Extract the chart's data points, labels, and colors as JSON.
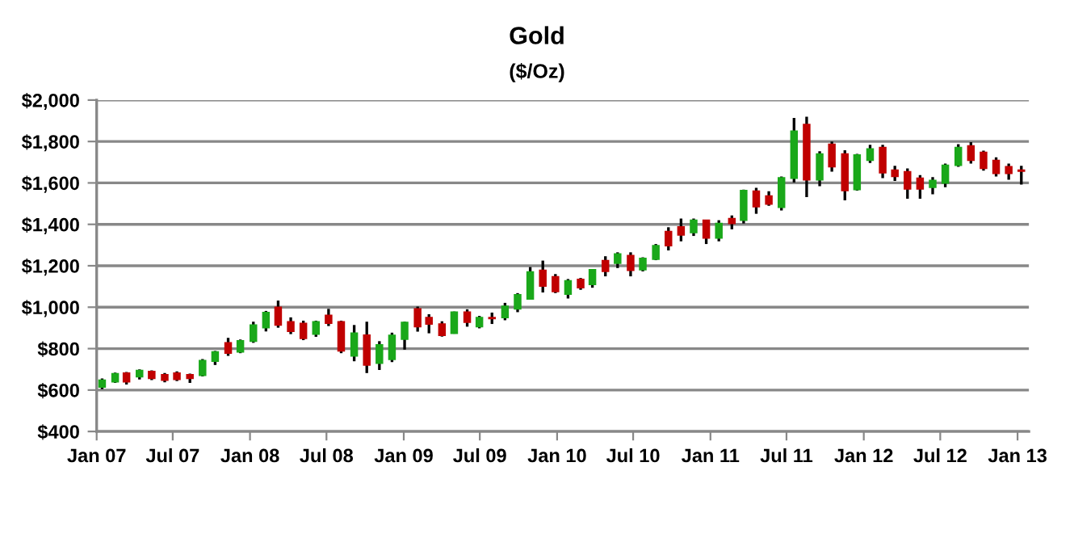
{
  "chart_data": {
    "type": "candlestick",
    "title": "Gold",
    "subtitle": "($/Oz)",
    "x": [
      "2007-01-14",
      "2007-02-14",
      "2007-03-13",
      "2007-04-13",
      "2007-05-12",
      "2007-06-12",
      "2007-07-11",
      "2007-08-11",
      "2007-09-10",
      "2007-10-10",
      "2007-11-10",
      "2007-12-09",
      "2008-01-09",
      "2008-02-08",
      "2008-03-08",
      "2008-04-07",
      "2008-05-07",
      "2008-06-06",
      "2008-07-06",
      "2008-08-05",
      "2008-09-05",
      "2008-10-05",
      "2008-11-04",
      "2008-12-04",
      "2009-01-03",
      "2009-02-03",
      "2009-03-02",
      "2009-04-02",
      "2009-05-01",
      "2009-06-01",
      "2009-06-30",
      "2009-07-30",
      "2009-08-30",
      "2009-09-29",
      "2009-10-29",
      "2009-11-28",
      "2009-12-28",
      "2010-01-27",
      "2010-02-26",
      "2010-03-26",
      "2010-04-26",
      "2010-05-25",
      "2010-06-25",
      "2010-07-24",
      "2010-08-24",
      "2010-09-23",
      "2010-10-23",
      "2010-11-22",
      "2010-12-22",
      "2011-01-21",
      "2011-02-21",
      "2011-03-21",
      "2011-04-20",
      "2011-05-20",
      "2011-06-19",
      "2011-07-19",
      "2011-08-18",
      "2011-09-18",
      "2011-10-17",
      "2011-11-17",
      "2011-12-16",
      "2012-01-16",
      "2012-02-15",
      "2012-03-15",
      "2012-04-14",
      "2012-05-14",
      "2012-06-13",
      "2012-07-13",
      "2012-08-13",
      "2012-09-12",
      "2012-10-12",
      "2012-11-11",
      "2012-12-11",
      "2013-01-10"
    ],
    "ohlc": [
      [
        614,
        656,
        604,
        648
      ],
      [
        640,
        684,
        635,
        679
      ],
      [
        682,
        687,
        627,
        640
      ],
      [
        664,
        700,
        651,
        695
      ],
      [
        690,
        695,
        648,
        656
      ],
      [
        674,
        682,
        637,
        648
      ],
      [
        682,
        690,
        643,
        651
      ],
      [
        674,
        679,
        635,
        656
      ],
      [
        671,
        750,
        666,
        742
      ],
      [
        739,
        789,
        721,
        784
      ],
      [
        828,
        852,
        765,
        778
      ],
      [
        784,
        844,
        778,
        838
      ],
      [
        836,
        930,
        828,
        914
      ],
      [
        901,
        982,
        883,
        974
      ],
      [
        1000,
        1032,
        901,
        914
      ],
      [
        930,
        951,
        870,
        883
      ],
      [
        922,
        935,
        841,
        849
      ],
      [
        870,
        935,
        857,
        930
      ],
      [
        961,
        992,
        909,
        922
      ],
      [
        930,
        935,
        778,
        789
      ],
      [
        765,
        914,
        739,
        875
      ],
      [
        865,
        930,
        682,
        721
      ],
      [
        729,
        836,
        697,
        818
      ],
      [
        748,
        877,
        735,
        864
      ],
      [
        845,
        930,
        795,
        927
      ],
      [
        992,
        1003,
        882,
        906
      ],
      [
        950,
        966,
        874,
        919
      ],
      [
        919,
        932,
        858,
        864
      ],
      [
        874,
        979,
        872,
        976
      ],
      [
        976,
        990,
        906,
        927
      ],
      [
        906,
        958,
        898,
        950
      ],
      [
        950,
        974,
        919,
        945
      ],
      [
        950,
        1021,
        937,
        1005
      ],
      [
        992,
        1068,
        976,
        1060
      ],
      [
        1039,
        1194,
        1039,
        1170
      ],
      [
        1178,
        1225,
        1071,
        1102
      ],
      [
        1147,
        1160,
        1068,
        1076
      ],
      [
        1063,
        1136,
        1042,
        1128
      ],
      [
        1134,
        1141,
        1084,
        1094
      ],
      [
        1110,
        1181,
        1094,
        1181
      ],
      [
        1225,
        1246,
        1149,
        1173
      ],
      [
        1212,
        1265,
        1189,
        1257
      ],
      [
        1249,
        1265,
        1149,
        1178
      ],
      [
        1181,
        1241,
        1173,
        1236
      ],
      [
        1232,
        1305,
        1227,
        1297
      ],
      [
        1365,
        1386,
        1274,
        1297
      ],
      [
        1388,
        1428,
        1318,
        1349
      ],
      [
        1360,
        1428,
        1344,
        1420
      ],
      [
        1420,
        1420,
        1305,
        1334
      ],
      [
        1334,
        1420,
        1318,
        1404
      ],
      [
        1428,
        1443,
        1376,
        1404
      ],
      [
        1420,
        1568,
        1404,
        1563
      ],
      [
        1560,
        1576,
        1451,
        1485
      ],
      [
        1537,
        1560,
        1490,
        1498
      ],
      [
        1482,
        1631,
        1467,
        1625
      ],
      [
        1623,
        1914,
        1602,
        1850
      ],
      [
        1882,
        1920,
        1532,
        1615
      ],
      [
        1615,
        1753,
        1584,
        1740
      ],
      [
        1787,
        1800,
        1654,
        1678
      ],
      [
        1740,
        1758,
        1516,
        1563
      ],
      [
        1568,
        1740,
        1563,
        1735
      ],
      [
        1709,
        1784,
        1696,
        1764
      ],
      [
        1771,
        1784,
        1623,
        1649
      ],
      [
        1662,
        1683,
        1610,
        1631
      ],
      [
        1654,
        1670,
        1524,
        1571
      ],
      [
        1623,
        1638,
        1524,
        1571
      ],
      [
        1579,
        1628,
        1545,
        1612
      ],
      [
        1599,
        1693,
        1579,
        1685
      ],
      [
        1685,
        1787,
        1678,
        1771
      ],
      [
        1779,
        1797,
        1693,
        1709
      ],
      [
        1748,
        1756,
        1659,
        1670
      ],
      [
        1709,
        1724,
        1631,
        1646
      ],
      [
        1678,
        1693,
        1615,
        1646
      ],
      [
        1662,
        1683,
        1592,
        1657
      ]
    ],
    "colors": [
      "#1aa81a",
      "#1aa81a",
      "#c00000",
      "#1aa81a",
      "#c00000",
      "#c00000",
      "#c00000",
      "#c00000",
      "#1aa81a",
      "#1aa81a",
      "#c00000",
      "#1aa81a",
      "#1aa81a",
      "#1aa81a",
      "#c00000",
      "#c00000",
      "#c00000",
      "#1aa81a",
      "#c00000",
      "#c00000",
      "#1aa81a",
      "#c00000",
      "#1aa81a",
      "#1aa81a",
      "#1aa81a",
      "#c00000",
      "#c00000",
      "#c00000",
      "#1aa81a",
      "#c00000",
      "#1aa81a",
      "#c00000",
      "#1aa81a",
      "#1aa81a",
      "#1aa81a",
      "#c00000",
      "#c00000",
      "#1aa81a",
      "#c00000",
      "#1aa81a",
      "#c00000",
      "#1aa81a",
      "#c00000",
      "#1aa81a",
      "#1aa81a",
      "#c00000",
      "#c00000",
      "#1aa81a",
      "#c00000",
      "#1aa81a",
      "#c00000",
      "#1aa81a",
      "#c00000",
      "#c00000",
      "#1aa81a",
      "#1aa81a",
      "#c00000",
      "#1aa81a",
      "#c00000",
      "#c00000",
      "#1aa81a",
      "#1aa81a",
      "#c00000",
      "#c00000",
      "#c00000",
      "#c00000",
      "#1aa81a",
      "#1aa81a",
      "#1aa81a",
      "#c00000",
      "#c00000",
      "#c00000",
      "#c00000",
      "#c00000"
    ],
    "xlim": [
      "2007-01-01",
      "2013-01-28"
    ],
    "xticks": [
      {
        "value": "2007-01-01",
        "label": "Jan 07"
      },
      {
        "value": "2007-07-01",
        "label": "Jul 07"
      },
      {
        "value": "2008-01-01",
        "label": "Jan 08"
      },
      {
        "value": "2008-07-01",
        "label": "Jul 08"
      },
      {
        "value": "2009-01-01",
        "label": "Jan 09"
      },
      {
        "value": "2009-07-01",
        "label": "Jul 09"
      },
      {
        "value": "2010-01-01",
        "label": "Jan 10"
      },
      {
        "value": "2010-07-01",
        "label": "Jul 10"
      },
      {
        "value": "2011-01-01",
        "label": "Jan 11"
      },
      {
        "value": "2011-07-01",
        "label": "Jul 11"
      },
      {
        "value": "2012-01-01",
        "label": "Jan 12"
      },
      {
        "value": "2012-07-01",
        "label": "Jul 12"
      },
      {
        "value": "2013-01-01",
        "label": "Jan 13"
      }
    ],
    "ylim": [
      400,
      2000
    ],
    "yticks": [
      {
        "value": 400,
        "label": "$400"
      },
      {
        "value": 600,
        "label": "$600"
      },
      {
        "value": 800,
        "label": "$800"
      },
      {
        "value": 1000,
        "label": "$1,000"
      },
      {
        "value": 1200,
        "label": "$1,200"
      },
      {
        "value": 1400,
        "label": "$1,400"
      },
      {
        "value": 1600,
        "label": "$1,600"
      },
      {
        "value": 1800,
        "label": "$1,800"
      },
      {
        "value": 2000,
        "label": "$2,000"
      }
    ],
    "grid": "y"
  }
}
